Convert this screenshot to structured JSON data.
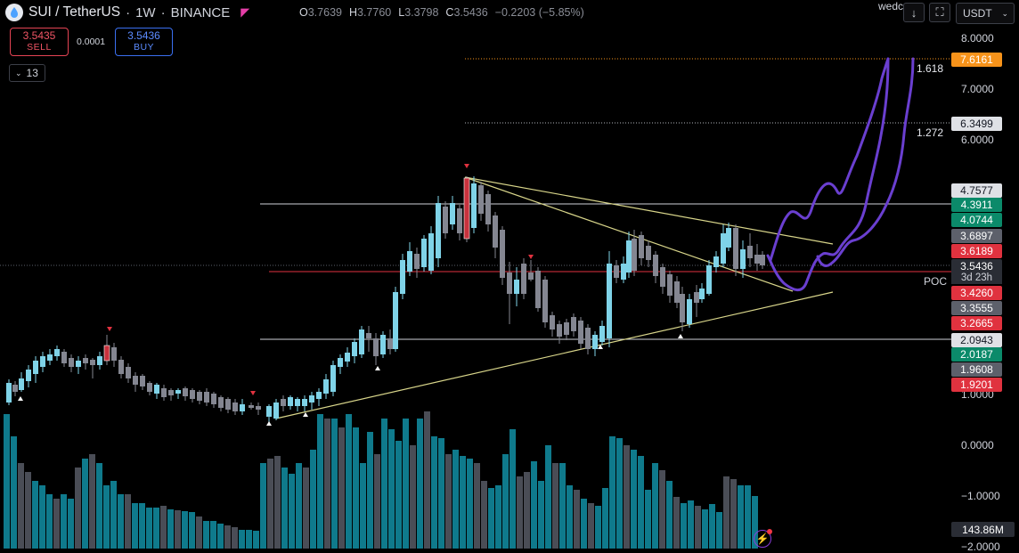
{
  "header": {
    "symbol": "SUI / TetherUS",
    "interval": "1W",
    "exchange": "BINANCE",
    "ohlc": {
      "o_label": "O",
      "o": "3.7639",
      "h_label": "H",
      "h": "3.7760",
      "l_label": "L",
      "l": "3.3798",
      "c_label": "C",
      "c": "3.5436",
      "change": "−0.2203 (−5.85%)"
    }
  },
  "trade": {
    "sell_price": "3.5435",
    "sell_label": "SELL",
    "spread": "0.0001",
    "buy_price": "3.5436",
    "buy_label": "BUY"
  },
  "indicators_count": "13",
  "toolbar": {
    "partial_text": "wedc",
    "currency": "USDT"
  },
  "price_axis": {
    "ticks": [
      "8.0000",
      "7.0000",
      "6.0000",
      "1.0000",
      "0.0000",
      "−1.0000",
      "−2.0000"
    ],
    "labels": [
      {
        "value": "7.6161",
        "color": "#f7931a"
      },
      {
        "value": "6.3499",
        "color": "#dfe1e6"
      },
      {
        "value": "4.7577",
        "color": "#dfe1e6"
      },
      {
        "value": "4.3911",
        "color": "#0b8a6a"
      },
      {
        "value": "4.0744",
        "color": "#0b8a6a"
      },
      {
        "value": "3.6897",
        "color": "#5d606b"
      },
      {
        "value": "3.6189",
        "color": "#e0323f"
      },
      {
        "value": "3.5436",
        "color": "#2a2d35"
      },
      {
        "value": "3.4260",
        "color": "#e0323f"
      },
      {
        "value": "3.3555",
        "color": "#5d606b"
      },
      {
        "value": "3.2665",
        "color": "#e0323f"
      },
      {
        "value": "2.0943",
        "color": "#dfe1e6"
      },
      {
        "value": "2.0187",
        "color": "#0b8a6a"
      },
      {
        "value": "1.9608",
        "color": "#5d606b"
      },
      {
        "value": "1.9201",
        "color": "#e0323f"
      }
    ],
    "countdown": "3d 23h",
    "volume": "143.86M"
  },
  "annotations": {
    "fib_1618": "1.618",
    "fib_1272": "1.272",
    "poc": "POC"
  },
  "chart_data": {
    "type": "candlestick",
    "symbol": "SUI / TetherUS",
    "interval": "1W",
    "last_close": 3.5436,
    "horizontal_levels": [
      7.6161,
      6.3499,
      4.7577,
      3.426,
      2.0943
    ],
    "fib_extensions": [
      {
        "ratio": "1.618",
        "price": 7.6161
      },
      {
        "ratio": "1.272",
        "price": 6.3499
      }
    ],
    "colors": {
      "up": "#7fd3e8",
      "down": "#848691",
      "vol_up": "#0f7a8c",
      "vol_down": "#4a4d56",
      "projection": "#6a3fd0",
      "trendline": "#d8d58a"
    }
  }
}
